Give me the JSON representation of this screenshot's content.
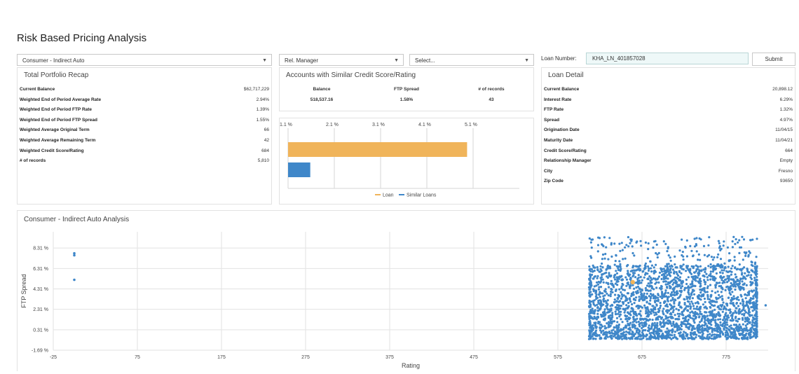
{
  "page": {
    "title": "Risk Based Pricing Analysis"
  },
  "filters": {
    "portfolio_select": "Consumer - Indirect Auto",
    "manager_select": "Rel. Manager",
    "second_select": "Select...",
    "loan_number_label": "Loan Number:",
    "loan_number_value": "KHA_LN_401857028",
    "submit_label": "Submit"
  },
  "portfolio_recap": {
    "title": "Total Portfolio Recap",
    "rows": [
      {
        "label": "Current Balance",
        "value": "$62,717,229"
      },
      {
        "label": "Weighted End of Period Average Rate",
        "value": "2.94%"
      },
      {
        "label": "Weighted End of Period FTP Rate",
        "value": "1.39%"
      },
      {
        "label": "Weighted End of Period FTP Spread",
        "value": "1.55%"
      },
      {
        "label": "Weighted Average Original Term",
        "value": "66"
      },
      {
        "label": "Weighted Average Remaining Term",
        "value": "42"
      },
      {
        "label": "Weighted Credit Score/Rating",
        "value": "684"
      },
      {
        "label": "# of records",
        "value": "5,810"
      }
    ]
  },
  "similar_accounts": {
    "title": "Accounts with Similar Credit Score/Rating",
    "headers": [
      "Balance",
      "FTP Spread",
      "# of records"
    ],
    "values": [
      "518,537.16",
      "1.58%",
      "43"
    ]
  },
  "loan_detail": {
    "title": "Loan Detail",
    "rows": [
      {
        "label": "Current Balance",
        "value": "20,898.12"
      },
      {
        "label": "Interest Rate",
        "value": "6.29%"
      },
      {
        "label": "FTP Rate",
        "value": "1.32%"
      },
      {
        "label": "Spread",
        "value": "4.97%"
      },
      {
        "label": "Origination Date",
        "value": "11/04/15"
      },
      {
        "label": "Maturity Date",
        "value": "11/04/21"
      },
      {
        "label": "Credit Score/Rating",
        "value": "664"
      },
      {
        "label": "Relationship Manager",
        "value": "Empty"
      },
      {
        "label": "City",
        "value": "Fresno"
      },
      {
        "label": "Zip Code",
        "value": "93650"
      }
    ]
  },
  "scatter_section": {
    "title": "Consumer - Indirect Auto Analysis"
  },
  "colors": {
    "loan": "#f0b45a",
    "similar": "#3f87c9",
    "scatter": "#3f87c9",
    "highlight": "#f0b45a"
  },
  "chart_data": [
    {
      "type": "bar",
      "orientation": "horizontal",
      "x_ticks": [
        "1.1 %",
        "2.1 %",
        "3.1 %",
        "4.1 %",
        "5.1 %"
      ],
      "xlim": [
        1.1,
        6.1
      ],
      "series": [
        {
          "name": "Loan",
          "values": [
            4.97
          ]
        },
        {
          "name": "Similar Loans",
          "values": [
            1.58
          ]
        }
      ],
      "legend": "bottom"
    },
    {
      "type": "scatter",
      "xlabel": "Rating",
      "ylabel": "FTP Spread",
      "xlim": [
        -25,
        825
      ],
      "ylim": [
        -1.69,
        10.0
      ],
      "x_ticks": [
        "-25",
        "75",
        "175",
        "275",
        "375",
        "475",
        "575",
        "675",
        "775"
      ],
      "y_ticks": [
        "-1.69 %",
        "0.31 %",
        "2.31 %",
        "4.31 %",
        "6.31 %",
        "8.31 %"
      ],
      "outliers": [
        {
          "x": 0,
          "y": 7.8
        },
        {
          "x": 0,
          "y": 7.6
        },
        {
          "x": 0,
          "y": 5.2
        }
      ],
      "highlight": {
        "x": 664,
        "y": 4.97
      },
      "cloud": {
        "x_range": [
          612,
          812
        ],
        "y_range": [
          -0.6,
          9.4
        ],
        "approx_points": 5810
      }
    }
  ]
}
